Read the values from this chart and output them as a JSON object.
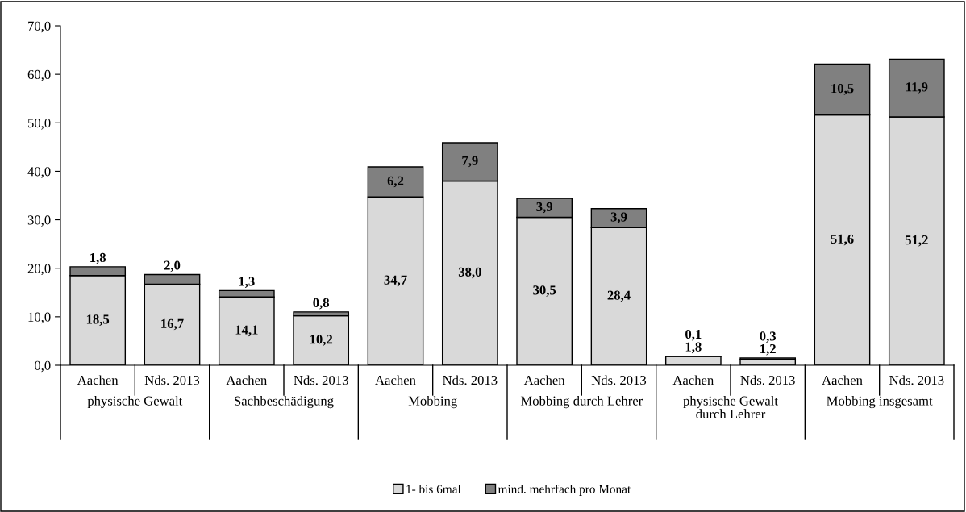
{
  "chart_data": {
    "type": "bar",
    "stacked": true,
    "categories": [
      "Aachen",
      "Nds. 2013",
      "Aachen",
      "Nds. 2013",
      "Aachen",
      "Nds. 2013",
      "Aachen",
      "Nds. 2013",
      "Aachen",
      "Nds. 2013",
      "Aachen",
      "Nds. 2013"
    ],
    "annotations": [
      "physische Gewalt",
      "Sachbeschädigung",
      "Mobbing",
      "Mobbing durch Lehrer",
      "physische Gewalt\ndurch Lehrer",
      "Mobbing insgesamt"
    ],
    "series": [
      {
        "name": "1- bis 6mal",
        "color": "#d9d9d9",
        "values": [
          18.5,
          16.7,
          14.1,
          10.2,
          34.7,
          38.0,
          30.5,
          28.4,
          1.8,
          1.2,
          51.6,
          51.2
        ],
        "value_labels": [
          "18,5",
          "16,7",
          "14,1",
          "10,2",
          "34,7",
          "38,0",
          "30,5",
          "28,4",
          "1,8",
          "1,2",
          "51,6",
          "51,2"
        ]
      },
      {
        "name": "mind. mehrfach pro Monat",
        "color": "#808080",
        "values": [
          1.8,
          2.0,
          1.3,
          0.8,
          6.2,
          7.9,
          3.9,
          3.9,
          0.1,
          0.3,
          10.5,
          11.9
        ],
        "value_labels": [
          "1,8",
          "2,0",
          "1,3",
          "0,8",
          "6,2",
          "7,9",
          "3,9",
          "3,9",
          "0,1",
          "0,3",
          "10,5",
          "11,9"
        ]
      }
    ],
    "ylim": [
      0,
      70
    ],
    "yticks": [
      {
        "value": 0,
        "label": "0,0"
      },
      {
        "value": 10,
        "label": "10,0"
      },
      {
        "value": 20,
        "label": "20,0"
      },
      {
        "value": 30,
        "label": "30,0"
      },
      {
        "value": 40,
        "label": "40,0"
      },
      {
        "value": 50,
        "label": "50,0"
      },
      {
        "value": 60,
        "label": "60,0"
      },
      {
        "value": 70,
        "label": "70,0"
      }
    ],
    "grid": false,
    "legend": "bottom"
  }
}
